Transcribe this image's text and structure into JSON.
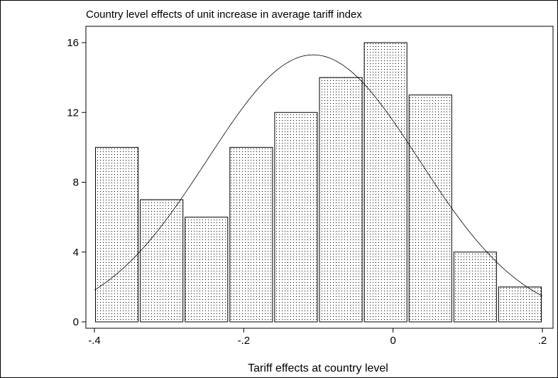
{
  "chart_data": {
    "type": "bar",
    "title": "Country level effects of unit increase in average tariff index",
    "xlabel": "Tariff effects at country level",
    "ylabel": "",
    "bins": [
      {
        "x0": -0.4,
        "x1": -0.34,
        "value": 10
      },
      {
        "x0": -0.34,
        "x1": -0.28,
        "value": 7
      },
      {
        "x0": -0.28,
        "x1": -0.22,
        "value": 6
      },
      {
        "x0": -0.22,
        "x1": -0.16,
        "value": 10
      },
      {
        "x0": -0.16,
        "x1": -0.1,
        "value": 12
      },
      {
        "x0": -0.1,
        "x1": -0.04,
        "value": 14
      },
      {
        "x0": -0.04,
        "x1": 0.02,
        "value": 16
      },
      {
        "x0": 0.02,
        "x1": 0.08,
        "value": 13
      },
      {
        "x0": 0.08,
        "x1": 0.14,
        "value": 4
      },
      {
        "x0": 0.14,
        "x1": 0.2,
        "value": 2
      }
    ],
    "normal_curve": {
      "mean": -0.107,
      "sd": 0.142,
      "peak": 15.3
    },
    "xticks": [
      {
        "value": -0.4,
        "label": "-.4"
      },
      {
        "value": -0.2,
        "label": "-.2"
      },
      {
        "value": 0,
        "label": "0"
      },
      {
        "value": 0.2,
        "label": ".2"
      }
    ],
    "yticks": [
      {
        "value": 0,
        "label": "0"
      },
      {
        "value": 4,
        "label": "4"
      },
      {
        "value": 8,
        "label": "8"
      },
      {
        "value": 12,
        "label": "12"
      },
      {
        "value": 16,
        "label": "16"
      }
    ],
    "xlim": [
      -0.4,
      0.2
    ],
    "ylim": [
      0,
      16
    ],
    "bar_pattern": "dotted",
    "grid": false,
    "colors": {
      "bar_fill": "#ffffff",
      "bar_dots": "#000000",
      "bar_edge": "#000000",
      "curve": "#000000"
    }
  }
}
